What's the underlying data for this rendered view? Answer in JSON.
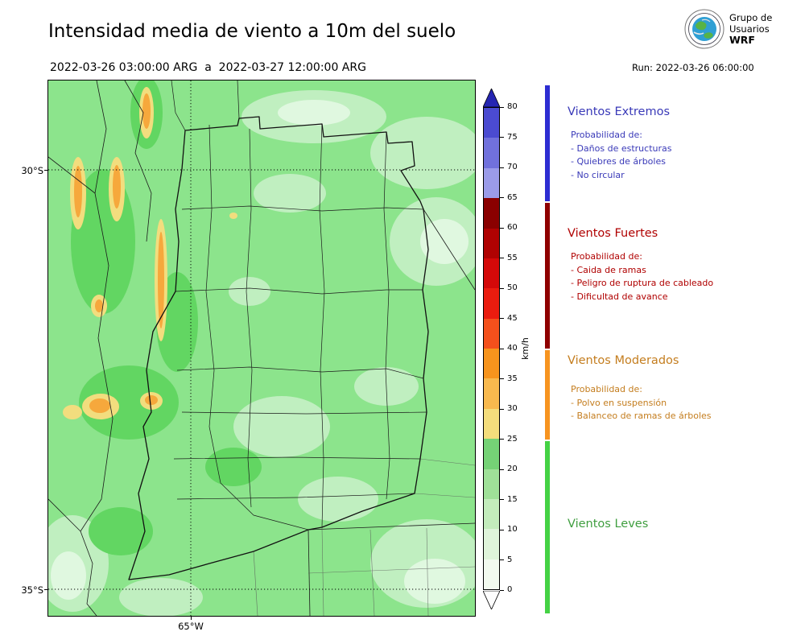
{
  "header": {
    "title": "Intensidad media de viento a 10m del suelo",
    "date_range": "2022-03-26 03:00:00 ARG  a  2022-03-27 12:00:00 ARG",
    "run_label": "Run: 2022-03-26 06:00:00",
    "logo": {
      "line1": "Grupo de",
      "line2": "Usuarios",
      "line3": "WRF"
    }
  },
  "map_axes": {
    "lat_ticks": [
      "30°S",
      "35°S"
    ],
    "lon_ticks": [
      "65°W"
    ]
  },
  "colorbar": {
    "unit": "km/h",
    "ticks": [
      "0",
      "5",
      "10",
      "15",
      "20",
      "25",
      "30",
      "35",
      "40",
      "45",
      "50",
      "55",
      "60",
      "65",
      "70",
      "75",
      "80"
    ],
    "segment_colors_bottom_to_top": [
      "#f2faef",
      "#dff4da",
      "#c3ecbc",
      "#9fe098",
      "#75d276",
      "#f4dd7c",
      "#f8b94e",
      "#f7941d",
      "#f4501c",
      "#ea1c0f",
      "#d40909",
      "#b00202",
      "#8a0000",
      "#9b9be9",
      "#7171dc",
      "#4b4bd1"
    ],
    "over_arrow_color": "#2525b2",
    "under_arrow_color": "#fdfdfd"
  },
  "legend": {
    "sections": [
      {
        "title": "Vientos Extremos",
        "text_color": "#3939b8",
        "bar_color": "#2d2dd2",
        "lines": [
          "Probabilidad de:",
          "- Daños de estructuras",
          "- Quiebres de árboles",
          "- No circular"
        ]
      },
      {
        "title": "Vientos Fuertes",
        "text_color": "#b00000",
        "bar_color": "#8f0000",
        "lines": [
          "Probabilidad de:",
          "- Caida de ramas",
          "- Peligro de ruptura de cableado",
          "- Dificultad de avance"
        ]
      },
      {
        "title": "Vientos Moderados",
        "text_color": "#c47d1e",
        "bar_color": "#f79420",
        "lines": [
          "Probabilidad de:",
          "- Polvo en suspensión",
          "- Balanceo de ramas de árboles"
        ]
      },
      {
        "title": "Vientos Leves",
        "text_color": "#3f9e3f",
        "bar_color": "#44d244",
        "lines": []
      }
    ]
  }
}
